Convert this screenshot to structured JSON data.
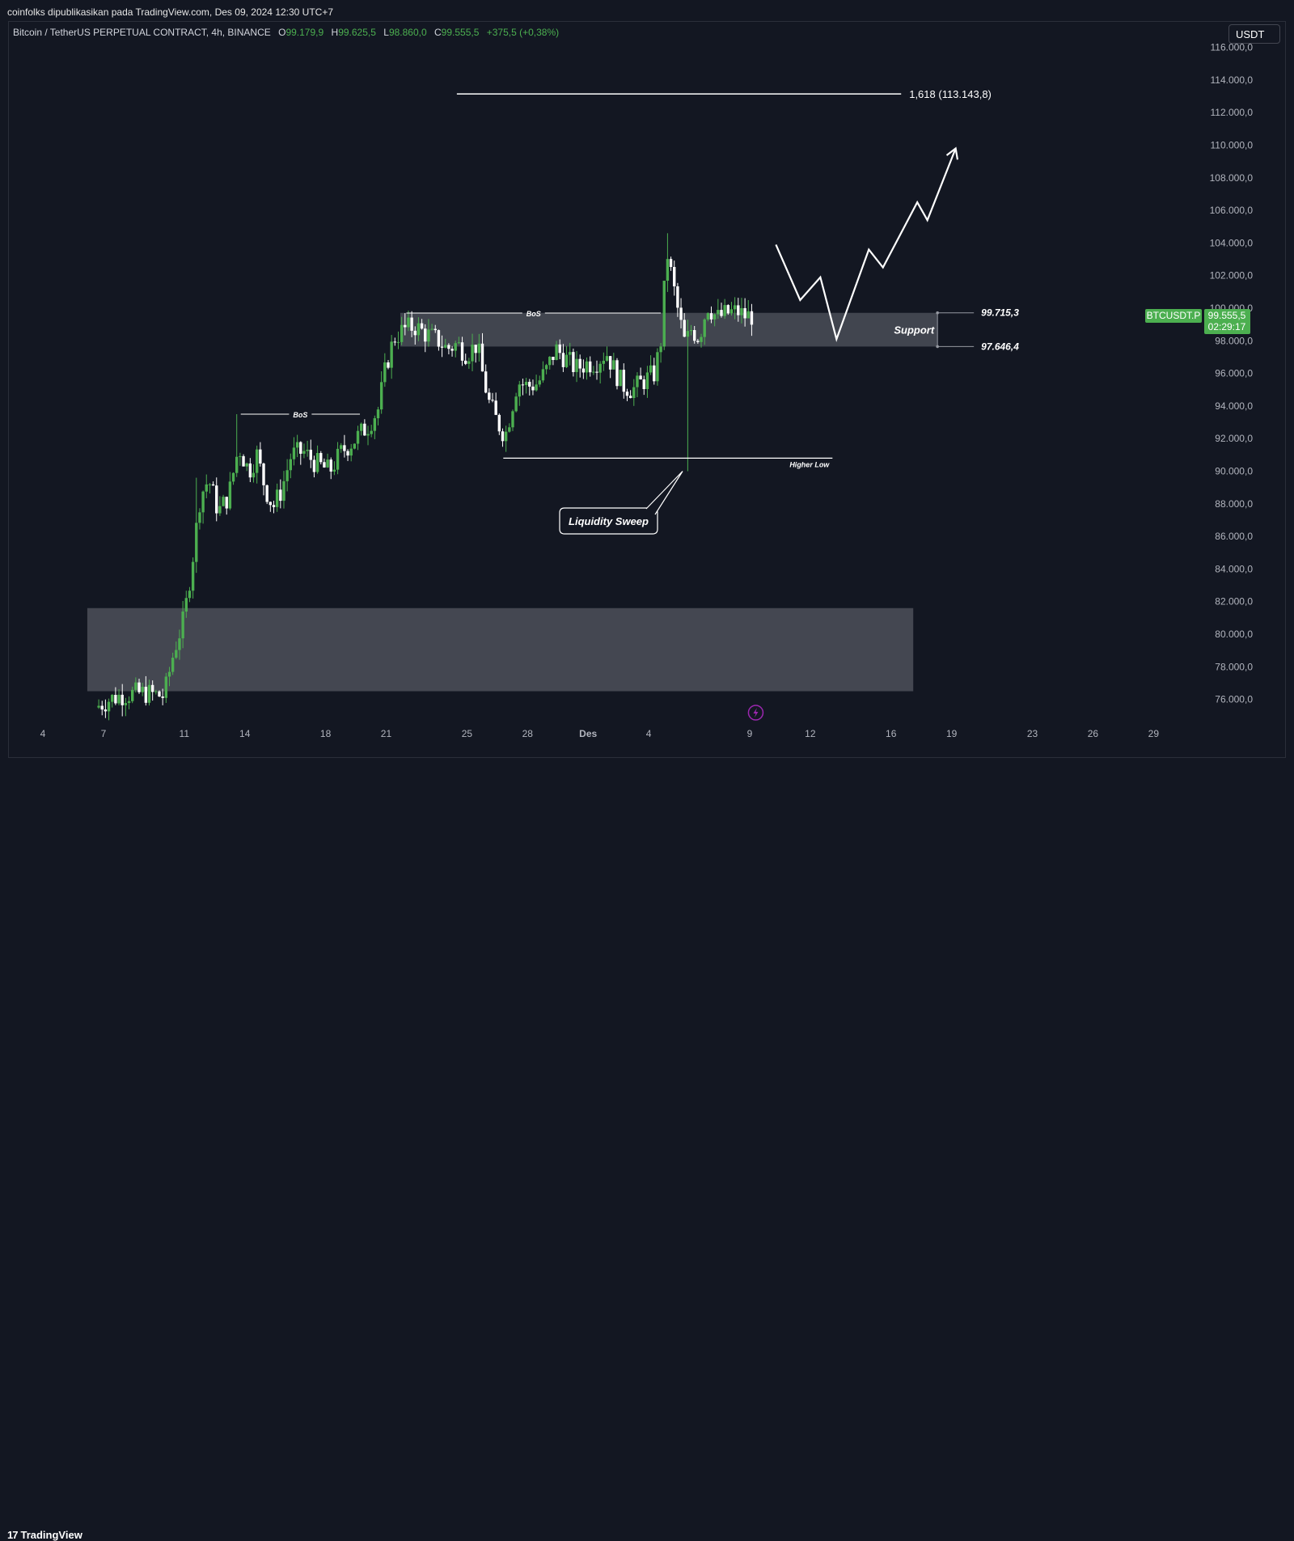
{
  "header": {
    "published": "coinfolks dipublikasikan pada TradingView.com, Des 09, 2024 12:30 UTC+7",
    "symbol": "Bitcoin / TetherUS PERPETUAL CONTRACT, 4h, BINANCE",
    "o_label": "O",
    "o_value": "99.179,9",
    "h_label": "H",
    "h_value": "99.625,5",
    "l_label": "L",
    "l_value": "98.860,0",
    "c_label": "C",
    "c_value": "99.555,5",
    "change": "+375,5 (+0,38%)",
    "currency": "USDT"
  },
  "footer": {
    "logo_mark": "17",
    "logo_text": "TradingView"
  },
  "price_labels": {
    "ticker": "BTCUSDT.P",
    "last_price": "99.555,5",
    "countdown": "02:29:17"
  },
  "colors": {
    "up": "#4caf50",
    "down": "#ffffff",
    "background": "#131722",
    "zone": "#4a4d57"
  },
  "chart_data": {
    "type": "candlestick",
    "timeframe": "4h",
    "yaxis": {
      "range": [
        74500,
        117000
      ],
      "ticks": [
        76000,
        78000,
        80000,
        82000,
        84000,
        86000,
        88000,
        90000,
        92000,
        94000,
        96000,
        98000,
        100000,
        102000,
        104000,
        106000,
        108000,
        110000,
        112000,
        114000,
        116000
      ],
      "tick_labels": [
        "76.000,0",
        "78.000,0",
        "80.000,0",
        "82.000,0",
        "84.000,0",
        "86.000,0",
        "88.000,0",
        "90.000,0",
        "92.000,0",
        "94.000,0",
        "96.000,0",
        "98.000,0",
        "100.000,0",
        "102.000,0",
        "104.000,0",
        "106.000,0",
        "108.000,0",
        "110.000,0",
        "112.000,0",
        "114.000,0",
        "116.000,0"
      ]
    },
    "xaxis": {
      "day_range": [
        3.5,
        59.5
      ],
      "ticks": [
        {
          "day": 4,
          "label": "4"
        },
        {
          "day": 7,
          "label": "7"
        },
        {
          "day": 11,
          "label": "11"
        },
        {
          "day": 14,
          "label": "14"
        },
        {
          "day": 18,
          "label": "18"
        },
        {
          "day": 21,
          "label": "21"
        },
        {
          "day": 25,
          "label": "25"
        },
        {
          "day": 28,
          "label": "28"
        },
        {
          "day": 31,
          "label": "Des",
          "bold": true
        },
        {
          "day": 34,
          "label": "4"
        },
        {
          "day": 39,
          "label": "9"
        },
        {
          "day": 42,
          "label": "12"
        },
        {
          "day": 46,
          "label": "16"
        },
        {
          "day": 49,
          "label": "19"
        },
        {
          "day": 53,
          "label": "23"
        },
        {
          "day": 56,
          "label": "26"
        },
        {
          "day": 59,
          "label": "29"
        }
      ]
    },
    "anchors": [
      {
        "day": 6.6,
        "price": 75500
      },
      {
        "day": 7.3,
        "price": 76000
      },
      {
        "day": 8,
        "price": 76300
      },
      {
        "day": 9,
        "price": 76400
      },
      {
        "day": 10,
        "price": 76200
      },
      {
        "day": 10.5,
        "price": 79000
      },
      {
        "day": 11,
        "price": 81000
      },
      {
        "day": 11.4,
        "price": 84500
      },
      {
        "day": 11.8,
        "price": 88500
      },
      {
        "day": 12.2,
        "price": 89500
      },
      {
        "day": 12.7,
        "price": 87500
      },
      {
        "day": 13.2,
        "price": 88500
      },
      {
        "day": 13.7,
        "price": 91500
      },
      {
        "day": 14.2,
        "price": 90000
      },
      {
        "day": 14.6,
        "price": 91000
      },
      {
        "day": 15,
        "price": 89000
      },
      {
        "day": 15.4,
        "price": 87800
      },
      {
        "day": 15.8,
        "price": 88800
      },
      {
        "day": 16.3,
        "price": 91000
      },
      {
        "day": 16.9,
        "price": 91200
      },
      {
        "day": 17.5,
        "price": 90500
      },
      {
        "day": 18.2,
        "price": 90000
      },
      {
        "day": 18.8,
        "price": 91200
      },
      {
        "day": 19.5,
        "price": 92000
      },
      {
        "day": 20.1,
        "price": 92800
      },
      {
        "day": 20.6,
        "price": 93800
      },
      {
        "day": 21,
        "price": 96500
      },
      {
        "day": 21.4,
        "price": 98200
      },
      {
        "day": 21.9,
        "price": 98700
      },
      {
        "day": 22.4,
        "price": 98900
      },
      {
        "day": 23,
        "price": 98400
      },
      {
        "day": 23.6,
        "price": 98000
      },
      {
        "day": 24,
        "price": 97500
      },
      {
        "day": 24.5,
        "price": 97800
      },
      {
        "day": 25,
        "price": 97200
      },
      {
        "day": 25.5,
        "price": 97800
      },
      {
        "day": 25.8,
        "price": 95800
      },
      {
        "day": 26.1,
        "price": 94200
      },
      {
        "day": 26.5,
        "price": 93000
      },
      {
        "day": 26.9,
        "price": 92200
      },
      {
        "day": 27.2,
        "price": 93800
      },
      {
        "day": 27.5,
        "price": 95500
      },
      {
        "day": 28,
        "price": 95200
      },
      {
        "day": 28.5,
        "price": 95400
      },
      {
        "day": 28.9,
        "price": 96100
      },
      {
        "day": 29.4,
        "price": 97500
      },
      {
        "day": 29.9,
        "price": 96900
      },
      {
        "day": 30.4,
        "price": 96300
      },
      {
        "day": 30.9,
        "price": 96600
      },
      {
        "day": 31.4,
        "price": 96700
      },
      {
        "day": 31.9,
        "price": 97300
      },
      {
        "day": 32.3,
        "price": 96200
      },
      {
        "day": 32.7,
        "price": 95300
      },
      {
        "day": 33.2,
        "price": 95000
      },
      {
        "day": 33.7,
        "price": 95500
      },
      {
        "day": 34.3,
        "price": 96000
      },
      {
        "day": 34.6,
        "price": 98000
      },
      {
        "day": 34.9,
        "price": 103500
      },
      {
        "day": 35.2,
        "price": 101500
      },
      {
        "day": 35.5,
        "price": 99500
      },
      {
        "day": 35.8,
        "price": 97800
      },
      {
        "day": 36.1,
        "price": 98700
      },
      {
        "day": 36.5,
        "price": 98200
      },
      {
        "day": 36.9,
        "price": 100200
      },
      {
        "day": 37.4,
        "price": 99400
      },
      {
        "day": 37.9,
        "price": 99700
      },
      {
        "day": 38.4,
        "price": 99800
      },
      {
        "day": 38.8,
        "price": 99500
      },
      {
        "day": 39.1,
        "price": 99555
      }
    ],
    "levels": [
      {
        "label": "1,618 (113.143,8)",
        "price": 113143.8,
        "from_day": 24.5,
        "to_day": 46.5
      },
      {
        "label": "99.715,3",
        "price": 99715.3
      },
      {
        "label": "97.646,4",
        "price": 97646.4
      }
    ],
    "zones": [
      {
        "label": "Support",
        "price_low": 97646.4,
        "price_high": 99715.3,
        "from_day": 21.7,
        "to_day": 48.3
      },
      {
        "label": "",
        "price_low": 76500,
        "price_high": 81600,
        "from_day": 6.2,
        "to_day": 47.1
      }
    ],
    "annotations": [
      {
        "label": "BoS",
        "price": 93500,
        "from_day": 13.8,
        "to_day": 19.7
      },
      {
        "label": "BoS",
        "price": 99700,
        "from_day": 22.0,
        "to_day": 34.6
      },
      {
        "label": "Higher Low",
        "price": 90800,
        "from_day": 26.8,
        "to_day": 43.1
      },
      {
        "label": "Liquidity Sweep",
        "price": 90000,
        "day": 36.0
      }
    ],
    "projection": [
      {
        "day": 40.3,
        "price": 103900
      },
      {
        "day": 41.5,
        "price": 100500
      },
      {
        "day": 42.5,
        "price": 101900
      },
      {
        "day": 43.3,
        "price": 98100
      },
      {
        "day": 44.9,
        "price": 103600
      },
      {
        "day": 45.6,
        "price": 102500
      },
      {
        "day": 47.3,
        "price": 106500
      },
      {
        "day": 47.8,
        "price": 105400
      },
      {
        "day": 49.2,
        "price": 109800
      }
    ]
  }
}
